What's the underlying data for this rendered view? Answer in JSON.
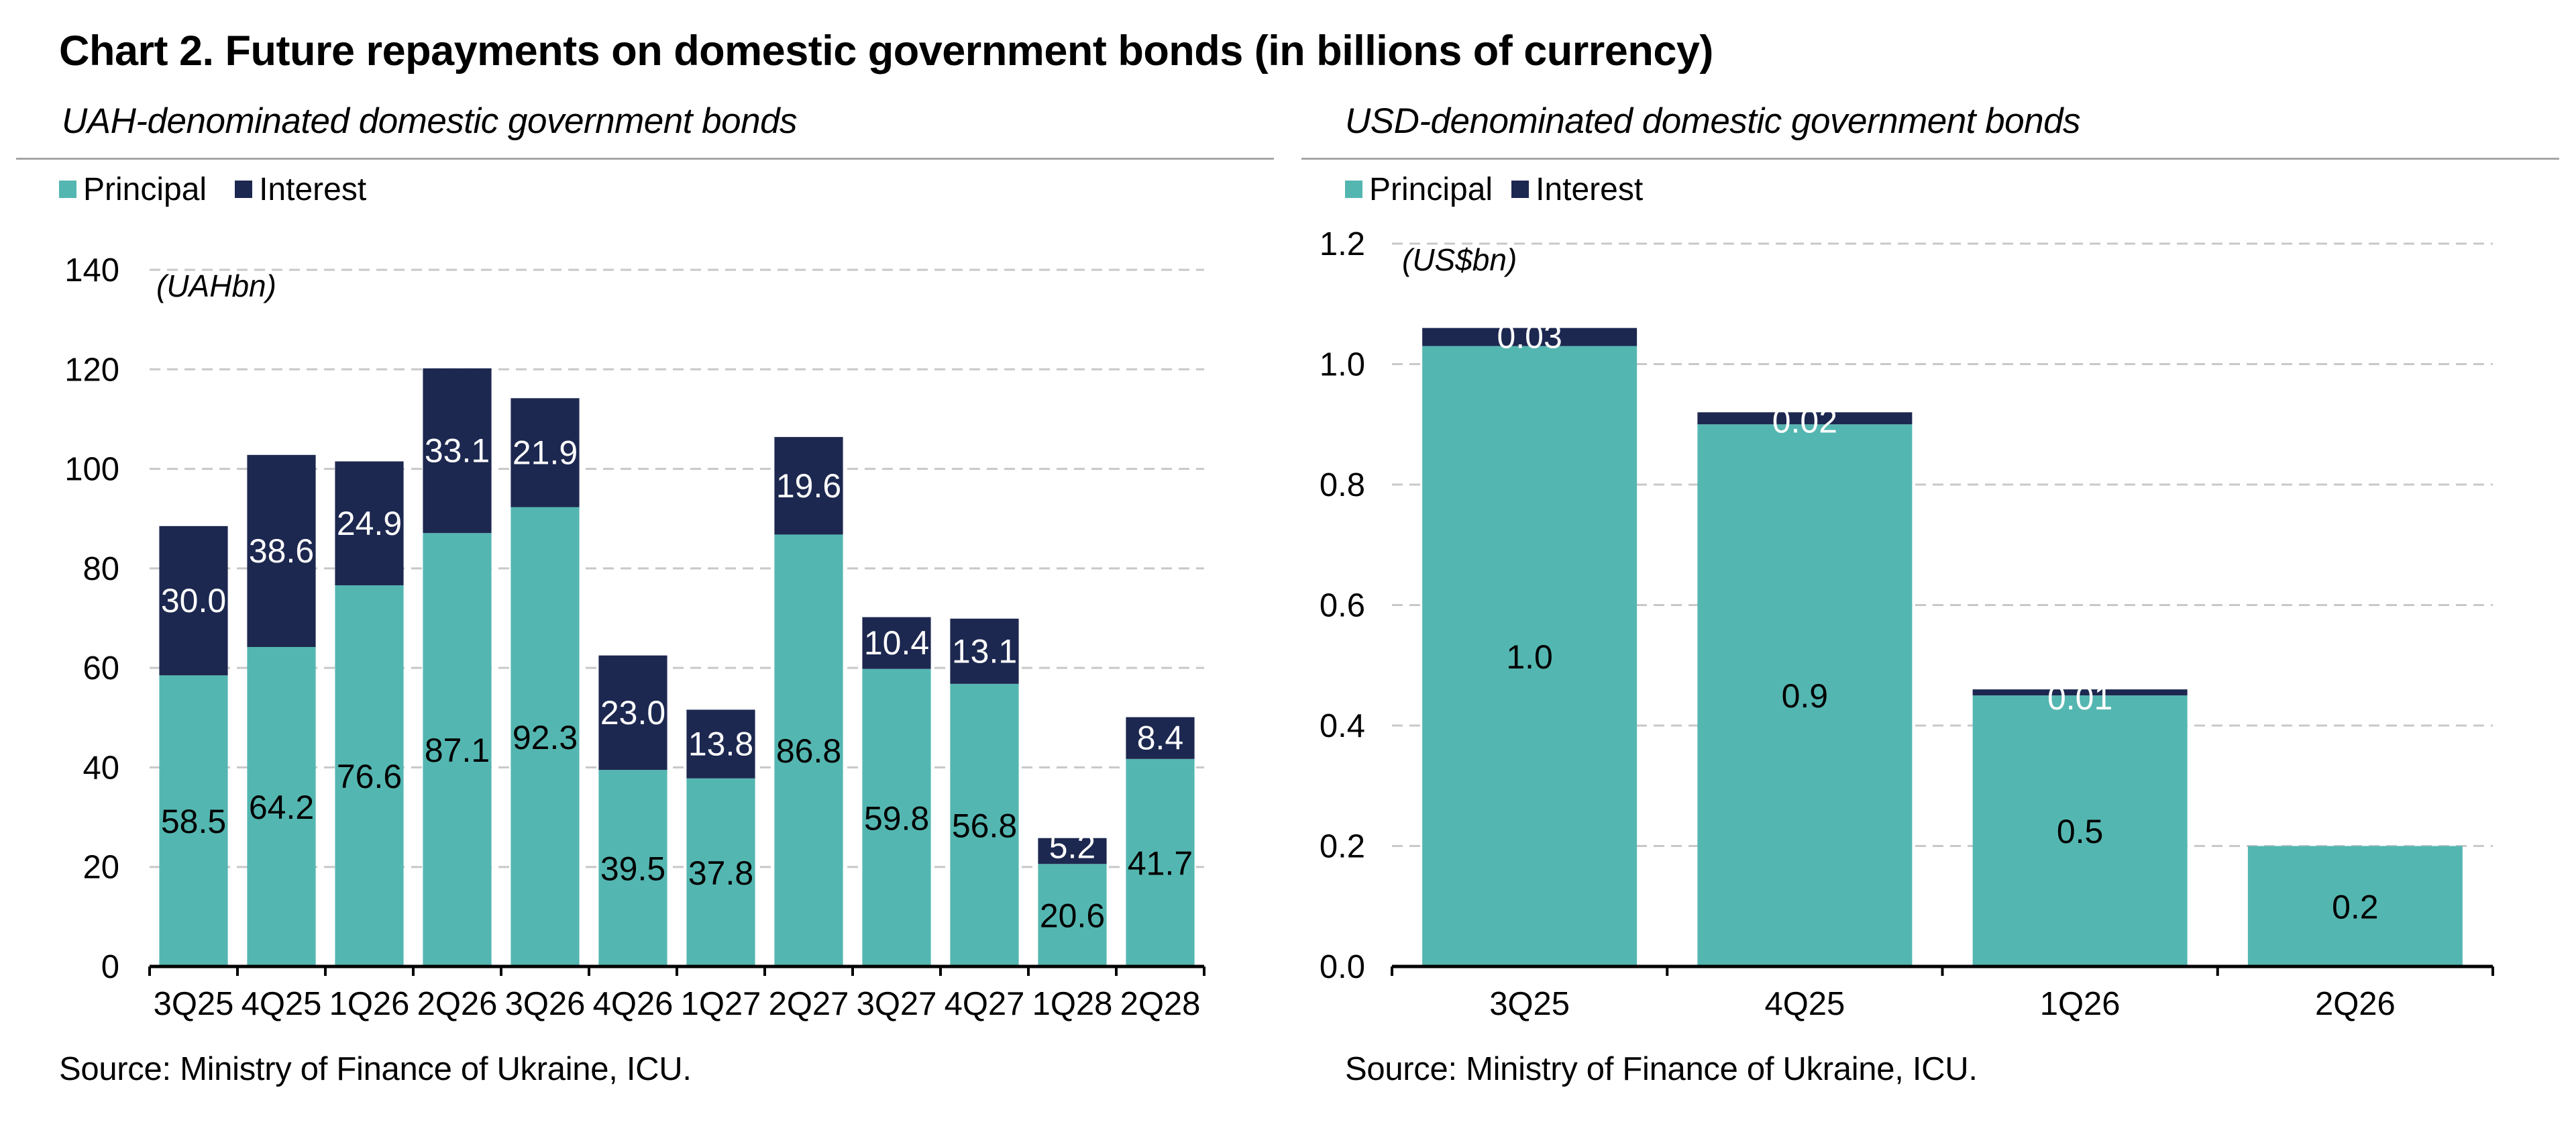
{
  "title": "Chart 2. Future repayments on domestic government bonds (in billions of currency)",
  "source": "Source: Ministry of Finance of Ukraine, ICU.",
  "colors": {
    "principal": "#54b6b1",
    "interest": "#1d2850",
    "grid": "#c8c8c8",
    "axis": "#000000"
  },
  "legend": {
    "principal": "Principal",
    "interest": "Interest"
  },
  "chart_data": [
    {
      "type": "bar",
      "stacked": true,
      "title": "UAH-denominated domestic government bonds",
      "unit_label": "(UAHbn)",
      "categories": [
        "3Q25",
        "4Q25",
        "1Q26",
        "2Q26",
        "3Q26",
        "4Q26",
        "1Q27",
        "2Q27",
        "3Q27",
        "4Q27",
        "1Q28",
        "2Q28"
      ],
      "series": [
        {
          "name": "Principal",
          "values": [
            58.5,
            64.2,
            76.6,
            87.1,
            92.3,
            39.5,
            37.8,
            86.8,
            59.8,
            56.8,
            20.6,
            41.7
          ]
        },
        {
          "name": "Interest",
          "values": [
            30.0,
            38.6,
            24.9,
            33.1,
            21.9,
            23.0,
            13.8,
            19.6,
            10.4,
            13.1,
            5.2,
            8.4
          ]
        }
      ],
      "data_labels": {
        "principal": [
          "58.5",
          "64.2",
          "76.6",
          "87.1",
          "92.3",
          "39.5",
          "37.8",
          "86.8",
          "59.8",
          "56.8",
          "20.6",
          "41.7"
        ],
        "interest": [
          "30.0",
          "38.6",
          "24.9",
          "33.1",
          "21.9",
          "23.0",
          "13.8",
          "19.6",
          "10.4",
          "13.1",
          "5.2",
          "8.4"
        ]
      },
      "ylim": [
        0,
        140
      ],
      "yticks": [
        0,
        20,
        40,
        60,
        80,
        100,
        120,
        140
      ],
      "ytick_labels": [
        "0",
        "20",
        "40",
        "60",
        "80",
        "100",
        "120",
        "140"
      ],
      "grid": true,
      "legend_position": "top-left"
    },
    {
      "type": "bar",
      "stacked": true,
      "title": "USD-denominated domestic government bonds",
      "unit_label": "(US$bn)",
      "categories": [
        "3Q25",
        "4Q25",
        "1Q26",
        "2Q26"
      ],
      "series": [
        {
          "name": "Principal",
          "values": [
            1.03,
            0.9,
            0.45,
            0.2
          ]
        },
        {
          "name": "Interest",
          "values": [
            0.03,
            0.02,
            0.01,
            0.0
          ]
        }
      ],
      "data_labels": {
        "principal": [
          "1.0",
          "0.9",
          "0.5",
          "0.2"
        ],
        "interest": [
          "0.03",
          "0.02",
          "0.01",
          ""
        ]
      },
      "ylim": [
        0,
        1.2
      ],
      "yticks": [
        0,
        0.2,
        0.4,
        0.6,
        0.8,
        1.0,
        1.2
      ],
      "ytick_labels": [
        "0.0",
        "0.2",
        "0.4",
        "0.6",
        "0.8",
        "1.0",
        "1.2"
      ],
      "grid": true,
      "legend_position": "top-left"
    }
  ]
}
